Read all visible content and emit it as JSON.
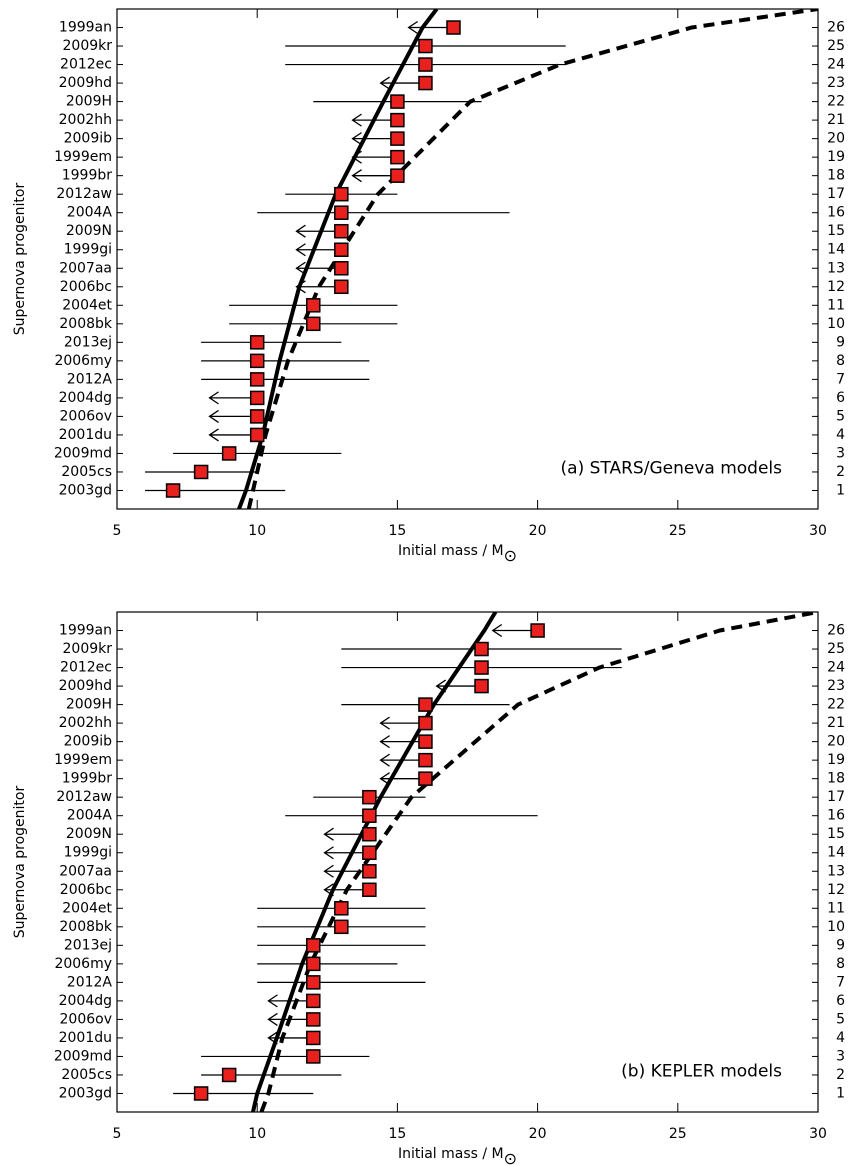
{
  "chart_data": [
    {
      "type": "errorbar",
      "annotation": "(a) STARS/Geneva models",
      "ylabel": "Supernova progenitor",
      "xlabel": "Initial mass / M",
      "xlabel_subscript": "⊙",
      "categories": [
        "2003gd",
        "2005cs",
        "2009md",
        "2001du",
        "2006ov",
        "2004dg",
        "2012A",
        "2006my",
        "2013ej",
        "2008bk",
        "2004et",
        "2006bc",
        "2007aa",
        "1999gi",
        "2009N",
        "2004A",
        "2012aw",
        "1999br",
        "1999em",
        "2009ib",
        "2002hh",
        "2009H",
        "2009hd",
        "2012ec",
        "2009kr",
        "1999an"
      ],
      "values": [
        7,
        8,
        9,
        10,
        10,
        10,
        10,
        10,
        10,
        12,
        12,
        13,
        13,
        13,
        13,
        13,
        13,
        15,
        15,
        15,
        15,
        15,
        16,
        16,
        16,
        17
      ],
      "lower": [
        6,
        6,
        7,
        8.3,
        8.3,
        8.3,
        8,
        8,
        8,
        9,
        9,
        11.4,
        11.4,
        11.4,
        11.4,
        10,
        11,
        13.4,
        13.4,
        13.4,
        13.4,
        12,
        14.4,
        11,
        11,
        15.4
      ],
      "upper": [
        11,
        10,
        13,
        null,
        null,
        null,
        14,
        14,
        13,
        15,
        15,
        null,
        null,
        null,
        null,
        19,
        15,
        null,
        null,
        null,
        null,
        18,
        null,
        21,
        21,
        null
      ],
      "marker_color": "#e8211f",
      "xlim": [
        5,
        30
      ],
      "xticks": [
        5,
        10,
        15,
        20,
        25,
        30
      ],
      "ylim": [
        0,
        27
      ],
      "yticks": [
        1,
        2,
        3,
        4,
        5,
        6,
        7,
        8,
        9,
        10,
        11,
        12,
        13,
        14,
        15,
        16,
        17,
        18,
        19,
        20,
        21,
        22,
        23,
        24,
        25,
        26
      ],
      "curves": [
        {
          "style": "solid",
          "x": [
            9.35,
            9.6,
            10.2,
            10.8,
            11.5,
            12.8,
            14.5,
            15.9,
            16.4
          ],
          "y": [
            0,
            1,
            4,
            8,
            12,
            17,
            22,
            26,
            27
          ]
        },
        {
          "style": "dashed",
          "x": [
            9.7,
            9.85,
            10.3,
            11.1,
            12.2,
            14.3,
            17.6,
            20.8,
            25.5,
            30
          ],
          "y": [
            0,
            1,
            4,
            8,
            12,
            17,
            22,
            24,
            26,
            27
          ]
        }
      ]
    },
    {
      "type": "errorbar",
      "annotation": "(b) KEPLER models",
      "ylabel": "Supernova progenitor",
      "xlabel": "Initial mass / M",
      "xlabel_subscript": "⊙",
      "categories": [
        "2003gd",
        "2005cs",
        "2009md",
        "2001du",
        "2006ov",
        "2004dg",
        "2012A",
        "2006my",
        "2013ej",
        "2008bk",
        "2004et",
        "2006bc",
        "2007aa",
        "1999gi",
        "2009N",
        "2004A",
        "2012aw",
        "1999br",
        "1999em",
        "2009ib",
        "2002hh",
        "2009H",
        "2009hd",
        "2012ec",
        "2009kr",
        "1999an"
      ],
      "values": [
        8,
        9,
        12,
        12,
        12,
        12,
        12,
        12,
        12,
        13,
        13,
        14,
        14,
        14,
        14,
        14,
        14,
        16,
        16,
        16,
        16,
        16,
        18,
        18,
        18,
        20
      ],
      "lower": [
        7,
        8,
        8,
        10.4,
        10.4,
        10.4,
        10,
        10,
        10,
        10,
        10,
        12.4,
        12.4,
        12.4,
        12.4,
        11,
        12,
        14.4,
        14.4,
        14.4,
        14.4,
        13,
        16.4,
        13,
        13,
        18.4
      ],
      "upper": [
        12,
        13,
        14,
        null,
        null,
        null,
        16,
        15,
        16,
        16,
        16,
        null,
        null,
        null,
        null,
        20,
        16,
        null,
        null,
        null,
        null,
        19,
        null,
        23,
        23,
        null
      ],
      "marker_color": "#e8211f",
      "xlim": [
        5,
        30
      ],
      "xticks": [
        5,
        10,
        15,
        20,
        25,
        30
      ],
      "ylim": [
        0,
        27
      ],
      "yticks": [
        1,
        2,
        3,
        4,
        5,
        6,
        7,
        8,
        9,
        10,
        11,
        12,
        13,
        14,
        15,
        16,
        17,
        18,
        19,
        20,
        21,
        22,
        23,
        24,
        25,
        26
      ],
      "curves": [
        {
          "style": "solid",
          "x": [
            9.85,
            10.0,
            10.7,
            11.6,
            12.7,
            14.4,
            16.3,
            18.1,
            18.5
          ],
          "y": [
            0,
            1,
            4,
            8,
            12,
            17,
            22,
            26,
            27
          ]
        },
        {
          "style": "dashed",
          "x": [
            10.15,
            10.4,
            10.9,
            11.9,
            13.2,
            15.5,
            19.3,
            22.2,
            26.5,
            30
          ],
          "y": [
            0,
            1,
            4,
            8,
            12,
            17,
            22,
            24,
            26,
            27
          ]
        }
      ]
    }
  ]
}
